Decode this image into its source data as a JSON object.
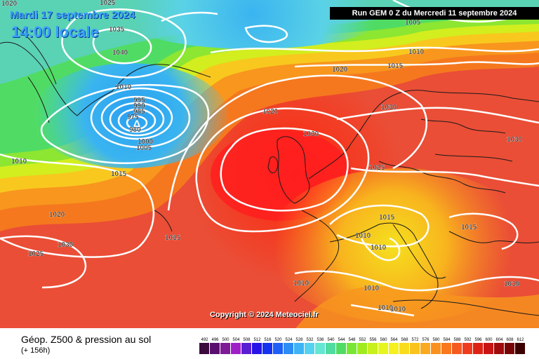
{
  "header": {
    "date": "Mardi 17 septembre 2024",
    "time": "14:00 locale",
    "run": "Run GEM 0 Z du Mercredi 11 septembre 2024"
  },
  "copyright": "Copyright © 2024 Meteociel.fr",
  "legend": {
    "title": "Géop. Z500 & pression au sol",
    "subtitle": "(+ 156h)",
    "ticks": [
      "492",
      "496",
      "500",
      "504",
      "508",
      "512",
      "516",
      "520",
      "524",
      "528",
      "532",
      "536",
      "540",
      "544",
      "548",
      "552",
      "556",
      "560",
      "564",
      "568",
      "572",
      "576",
      "580",
      "584",
      "588",
      "592",
      "596",
      "600",
      "604",
      "608",
      "612"
    ],
    "colors": [
      "#3c0a3c",
      "#5a0f6e",
      "#7d1a96",
      "#a020c8",
      "#5a1ed2",
      "#2814e6",
      "#1432f0",
      "#1e5ff5",
      "#2d8cf5",
      "#3cb4f5",
      "#55d2f0",
      "#64e6d2",
      "#50dca0",
      "#50dc64",
      "#78e632",
      "#a0eb1e",
      "#c8f01e",
      "#e6f51e",
      "#f5f01e",
      "#fadc1e",
      "#fac31e",
      "#faaa1e",
      "#fa911e",
      "#fa781e",
      "#f55a1e",
      "#f03c1e",
      "#dc2314",
      "#c81414",
      "#a00a0a",
      "#780505",
      "#3c0000"
    ]
  },
  "colors": {
    "sea": "#ea4e36",
    "high_center": "#ff1e1e",
    "low_blue": "#3ab0f0",
    "green": "#5ad85a",
    "contour": "#ffffff",
    "coast": "#1a1a1a"
  },
  "isobar_labels": [
    "1020",
    "1025",
    "1035",
    "1040",
    "1010",
    "995",
    "990",
    "985",
    "980",
    "975",
    "1000",
    "1005",
    "1010",
    "1015",
    "1020",
    "1025",
    "1030",
    "1020",
    "1015",
    "1010",
    "1005",
    "1020",
    "1030",
    "1030",
    "1025",
    "1015",
    "1015",
    "1010",
    "1010",
    "1010",
    "1015",
    "1010",
    "1010",
    "1010",
    "1010",
    "1030",
    "1010"
  ]
}
